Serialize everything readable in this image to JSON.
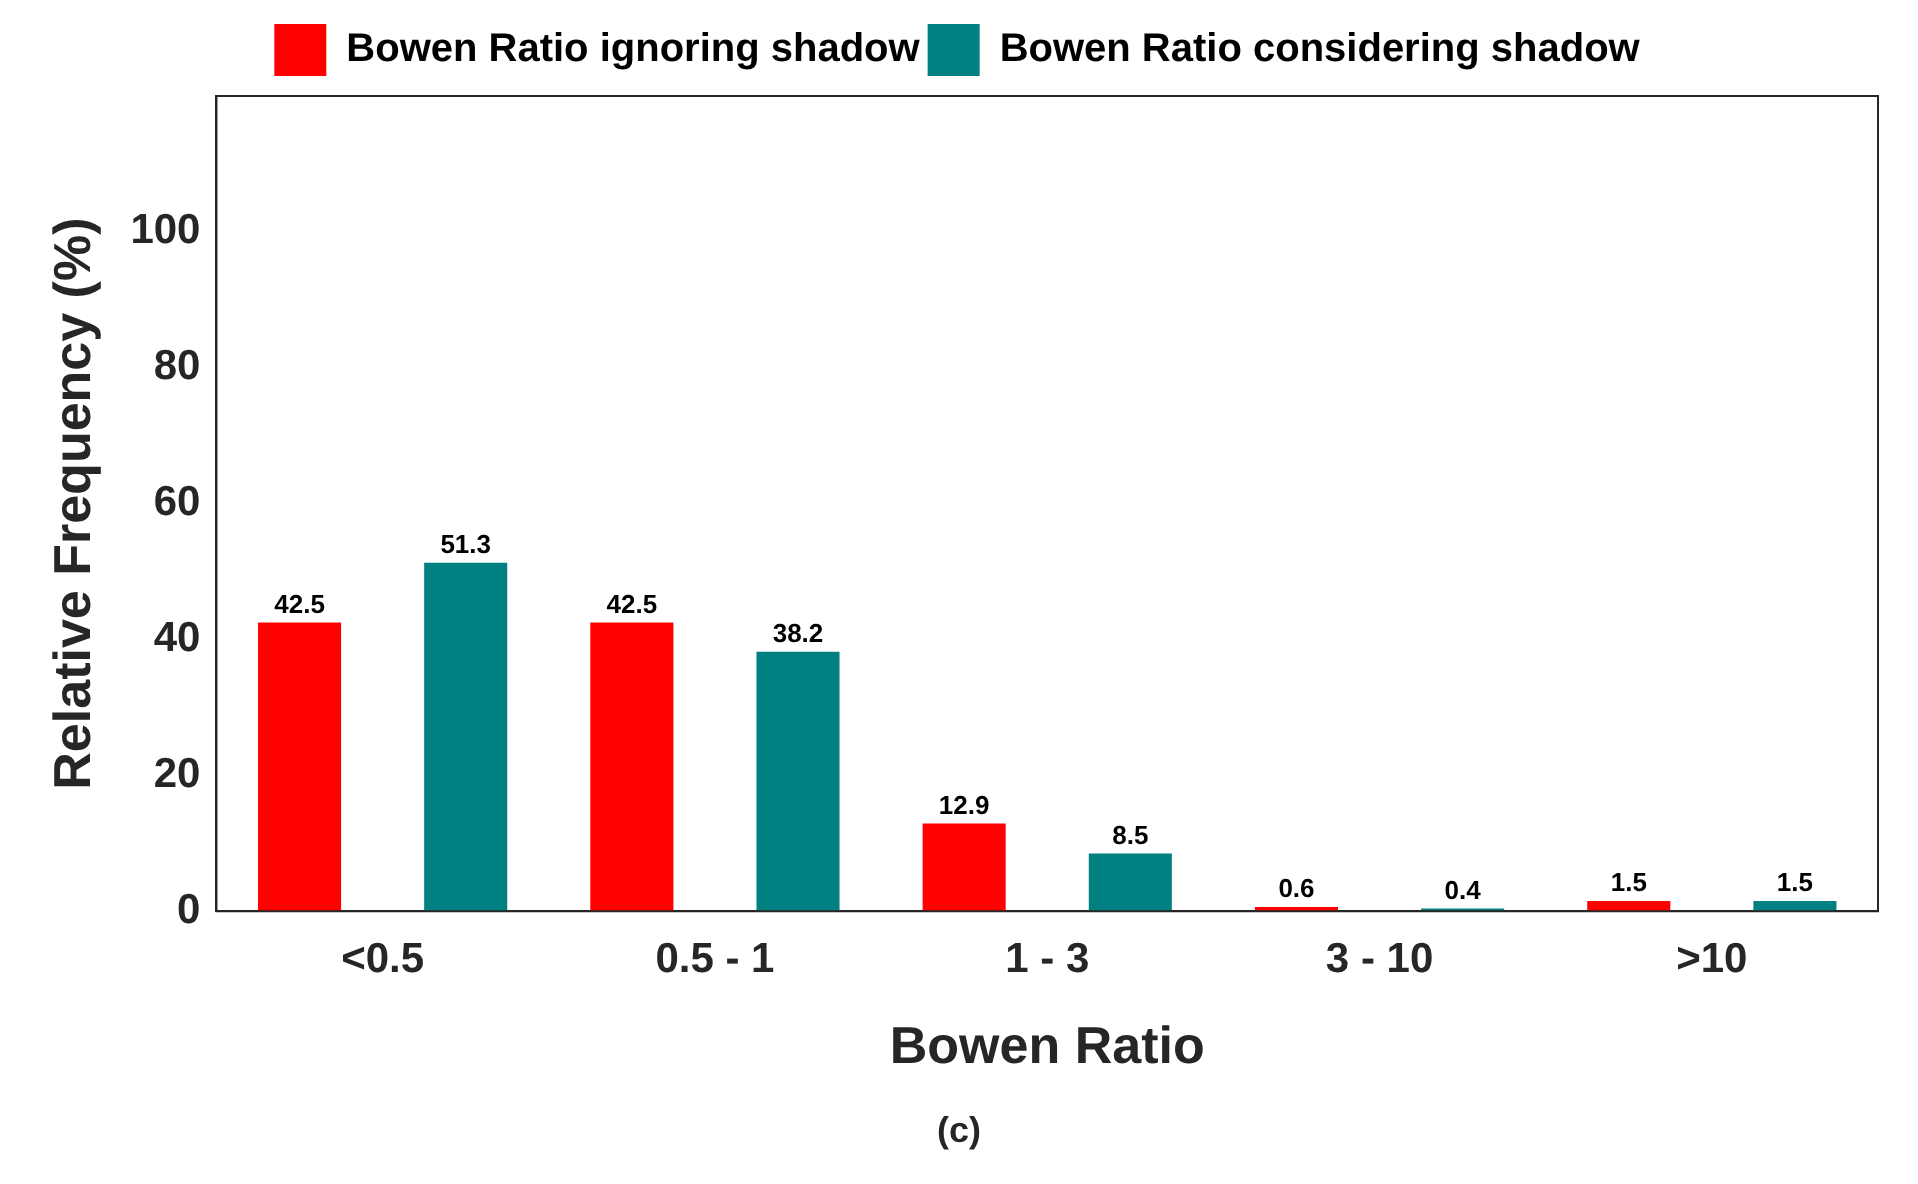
{
  "chart_data": {
    "type": "bar",
    "xlabel": "Bowen Ratio",
    "ylabel": "Relative Frequency (%)",
    "categories": [
      "<0.5",
      "0.5 - 1",
      "1 - 3",
      "3 - 10",
      ">10"
    ],
    "series": [
      {
        "name": "Bowen Ratio ignoring shadow",
        "color": "#ff0000",
        "values": [
          42.5,
          42.5,
          12.9,
          0.6,
          1.5
        ]
      },
      {
        "name": "Bowen Ratio considering shadow",
        "color": "#008080",
        "values": [
          51.3,
          38.2,
          8.5,
          0.4,
          1.5
        ]
      }
    ],
    "ylim": [
      0,
      120
    ],
    "yticks": [
      0,
      20,
      40,
      60,
      80,
      100
    ],
    "grid": false,
    "legend": "top",
    "data_labels": true,
    "annotations": [
      "(c)"
    ]
  }
}
